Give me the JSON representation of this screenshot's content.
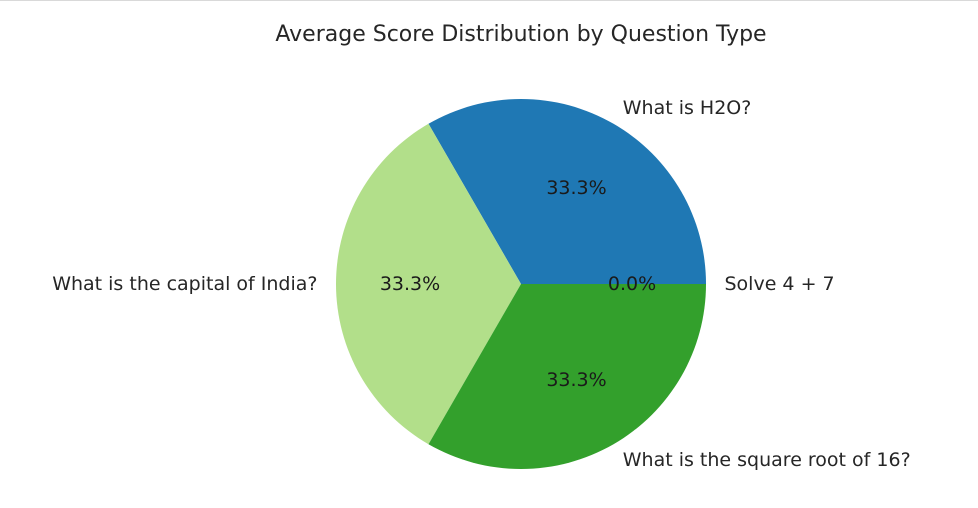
{
  "chart_data": {
    "type": "pie",
    "title": "Average Score Distribution by Question Type",
    "categories": [
      "Solve 4 + 7",
      "What is H2O?",
      "What is the capital of India?",
      "What is the square root of 16?"
    ],
    "values": [
      0,
      33.3,
      33.3,
      33.3
    ],
    "percent_labels": [
      "0.0%",
      "33.3%",
      "33.3%",
      "33.3%"
    ],
    "colors": [
      "#a6cee3",
      "#1f78b4",
      "#b2df8a",
      "#33a02c"
    ],
    "start_angle": 0,
    "direction": "counterclockwise"
  }
}
